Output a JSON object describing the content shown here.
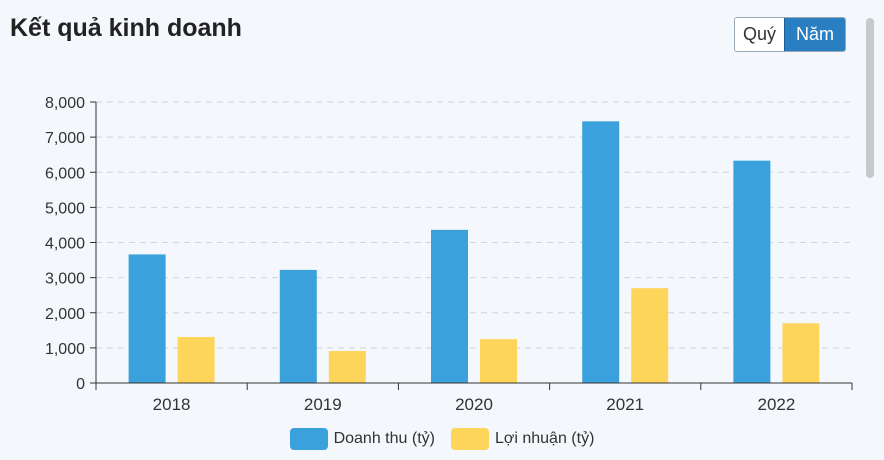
{
  "header": {
    "title": "Kết quả kinh doanh"
  },
  "toggle": {
    "options": [
      "Quý",
      "Năm"
    ],
    "active": 1
  },
  "chart_data": {
    "type": "bar",
    "title": "",
    "xlabel": "",
    "ylabel": "",
    "categories": [
      "2018",
      "2019",
      "2020",
      "2021",
      "2022"
    ],
    "series": [
      {
        "name": "Doanh thu (tỷ)",
        "color": "#3ba1dc",
        "values": [
          3660,
          3220,
          4360,
          7450,
          6330
        ]
      },
      {
        "name": "Lợi nhuận (tỷ)",
        "color": "#fdd55b",
        "values": [
          1310,
          910,
          1250,
          2700,
          1700
        ]
      }
    ],
    "ylim": [
      0,
      8000
    ],
    "yticks": [
      "0",
      "1,000",
      "2,000",
      "3,000",
      "4,000",
      "5,000",
      "6,000",
      "7,000",
      "8,000"
    ],
    "grid": true,
    "legend_position": "bottom"
  }
}
